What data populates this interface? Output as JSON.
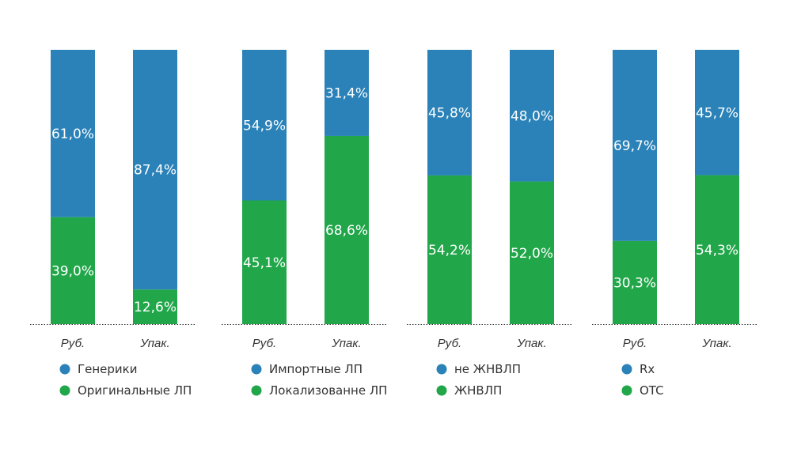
{
  "colors": {
    "top": "#2a82b8",
    "bottom": "#21a74a"
  },
  "chart_data": [
    {
      "type": "bar",
      "stacked": true,
      "categories": [
        "Руб.",
        "Упак."
      ],
      "ylim": [
        0,
        100
      ],
      "series": [
        {
          "name": "Оригинальные ЛП",
          "values": [
            39.0,
            12.6
          ],
          "labels": [
            "39,0%",
            "12,6%"
          ],
          "color": "#21a74a"
        },
        {
          "name": "Генерики",
          "values": [
            61.0,
            87.4
          ],
          "labels": [
            "61,0%",
            "87,4%"
          ],
          "color": "#2a82b8"
        }
      ],
      "legend": [
        "Генерики",
        "Оригинальные ЛП"
      ]
    },
    {
      "type": "bar",
      "stacked": true,
      "categories": [
        "Руб.",
        "Упак."
      ],
      "ylim": [
        0,
        100
      ],
      "series": [
        {
          "name": "Локализованне ЛП",
          "values": [
            45.1,
            68.6
          ],
          "labels": [
            "45,1%",
            "68,6%"
          ],
          "color": "#21a74a"
        },
        {
          "name": "Импортные ЛП",
          "values": [
            54.9,
            31.4
          ],
          "labels": [
            "54,9%",
            "31,4%"
          ],
          "color": "#2a82b8"
        }
      ],
      "legend": [
        "Импортные ЛП",
        "Локализованне ЛП"
      ]
    },
    {
      "type": "bar",
      "stacked": true,
      "categories": [
        "Руб.",
        "Упак."
      ],
      "ylim": [
        0,
        100
      ],
      "series": [
        {
          "name": "ЖНВЛП",
          "values": [
            54.2,
            52.0
          ],
          "labels": [
            "54,2%",
            "52,0%"
          ],
          "color": "#21a74a"
        },
        {
          "name": "не ЖНВЛП",
          "values": [
            45.8,
            48.0
          ],
          "labels": [
            "45,8%",
            "48,0%"
          ],
          "color": "#2a82b8"
        }
      ],
      "legend": [
        "не ЖНВЛП",
        "ЖНВЛП"
      ]
    },
    {
      "type": "bar",
      "stacked": true,
      "categories": [
        "Руб.",
        "Упак."
      ],
      "ylim": [
        0,
        100
      ],
      "series": [
        {
          "name": "OTC",
          "values": [
            30.3,
            54.3
          ],
          "labels": [
            "30,3%",
            "54,3%"
          ],
          "color": "#21a74a"
        },
        {
          "name": "Rx",
          "values": [
            69.7,
            45.7
          ],
          "labels": [
            "69,7%",
            "45,7%"
          ],
          "color": "#2a82b8"
        }
      ],
      "legend": [
        "Rx",
        "OTC"
      ]
    }
  ]
}
